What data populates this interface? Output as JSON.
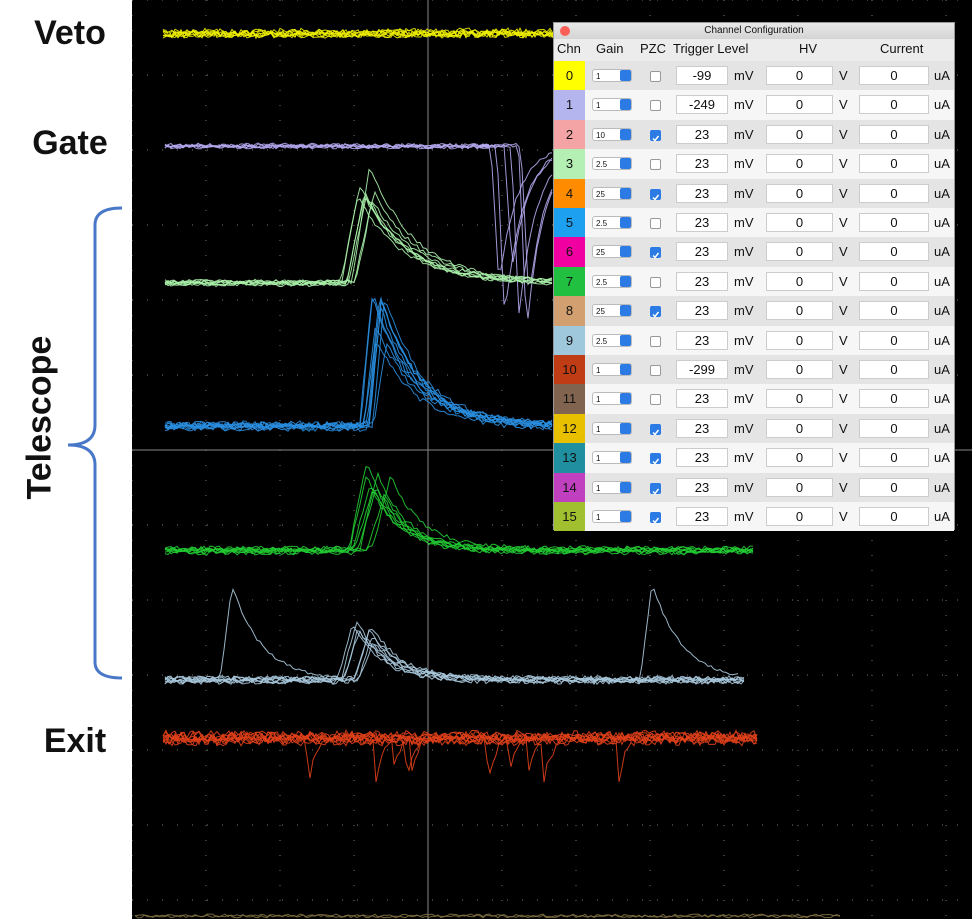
{
  "labels": {
    "veto": "Veto",
    "gate": "Gate",
    "telescope": "Telescope",
    "exit": "Exit"
  },
  "dialog": {
    "title": "Channel Configuration",
    "headers": {
      "chn": "Chn",
      "gain": "Gain",
      "pzc": "PZC",
      "trigger": "Trigger Level",
      "hv": "HV",
      "current": "Current"
    },
    "rows": [
      {
        "chn": 0,
        "color": "#ffff00",
        "gain": 1,
        "pzc": false,
        "trigger": -99,
        "trigger_unit": "mV",
        "hv": 0,
        "hv_unit": "V",
        "current": 0,
        "current_unit": "uA"
      },
      {
        "chn": 1,
        "color": "#b4b4ee",
        "gain": 1,
        "pzc": false,
        "trigger": -249,
        "trigger_unit": "mV",
        "hv": 0,
        "hv_unit": "V",
        "current": 0,
        "current_unit": "uA"
      },
      {
        "chn": 2,
        "color": "#f4a4a4",
        "gain": 10,
        "pzc": true,
        "trigger": 23,
        "trigger_unit": "mV",
        "hv": 0,
        "hv_unit": "V",
        "current": 0,
        "current_unit": "uA"
      },
      {
        "chn": 3,
        "color": "#b4f0b4",
        "gain": 2.5,
        "pzc": false,
        "trigger": 23,
        "trigger_unit": "mV",
        "hv": 0,
        "hv_unit": "V",
        "current": 0,
        "current_unit": "uA"
      },
      {
        "chn": 4,
        "color": "#ff8c00",
        "gain": 25,
        "pzc": true,
        "trigger": 23,
        "trigger_unit": "mV",
        "hv": 0,
        "hv_unit": "V",
        "current": 0,
        "current_unit": "uA"
      },
      {
        "chn": 5,
        "color": "#1ea0f0",
        "gain": 2.5,
        "pzc": false,
        "trigger": 23,
        "trigger_unit": "mV",
        "hv": 0,
        "hv_unit": "V",
        "current": 0,
        "current_unit": "uA"
      },
      {
        "chn": 6,
        "color": "#f000a0",
        "gain": 25,
        "pzc": true,
        "trigger": 23,
        "trigger_unit": "mV",
        "hv": 0,
        "hv_unit": "V",
        "current": 0,
        "current_unit": "uA"
      },
      {
        "chn": 7,
        "color": "#22c040",
        "gain": 2.5,
        "pzc": false,
        "trigger": 23,
        "trigger_unit": "mV",
        "hv": 0,
        "hv_unit": "V",
        "current": 0,
        "current_unit": "uA"
      },
      {
        "chn": 8,
        "color": "#d2a070",
        "gain": 25,
        "pzc": true,
        "trigger": 23,
        "trigger_unit": "mV",
        "hv": 0,
        "hv_unit": "V",
        "current": 0,
        "current_unit": "uA"
      },
      {
        "chn": 9,
        "color": "#a0c8dc",
        "gain": 2.5,
        "pzc": false,
        "trigger": 23,
        "trigger_unit": "mV",
        "hv": 0,
        "hv_unit": "V",
        "current": 0,
        "current_unit": "uA"
      },
      {
        "chn": 10,
        "color": "#c03c14",
        "gain": 1,
        "pzc": false,
        "trigger": -299,
        "trigger_unit": "mV",
        "hv": 0,
        "hv_unit": "V",
        "current": 0,
        "current_unit": "uA"
      },
      {
        "chn": 11,
        "color": "#806450",
        "gain": 1,
        "pzc": false,
        "trigger": 23,
        "trigger_unit": "mV",
        "hv": 0,
        "hv_unit": "V",
        "current": 0,
        "current_unit": "uA"
      },
      {
        "chn": 12,
        "color": "#e8c000",
        "gain": 1,
        "pzc": true,
        "trigger": 23,
        "trigger_unit": "mV",
        "hv": 0,
        "hv_unit": "V",
        "current": 0,
        "current_unit": "uA"
      },
      {
        "chn": 13,
        "color": "#2090a0",
        "gain": 1,
        "pzc": true,
        "trigger": 23,
        "trigger_unit": "mV",
        "hv": 0,
        "hv_unit": "V",
        "current": 0,
        "current_unit": "uA"
      },
      {
        "chn": 14,
        "color": "#c040c0",
        "gain": 1,
        "pzc": true,
        "trigger": 23,
        "trigger_unit": "mV",
        "hv": 0,
        "hv_unit": "V",
        "current": 0,
        "current_unit": "uA"
      },
      {
        "chn": 15,
        "color": "#a0c030",
        "gain": 1,
        "pzc": true,
        "trigger": 23,
        "trigger_unit": "mV",
        "hv": 0,
        "hv_unit": "V",
        "current": 0,
        "current_unit": "uA"
      }
    ]
  }
}
